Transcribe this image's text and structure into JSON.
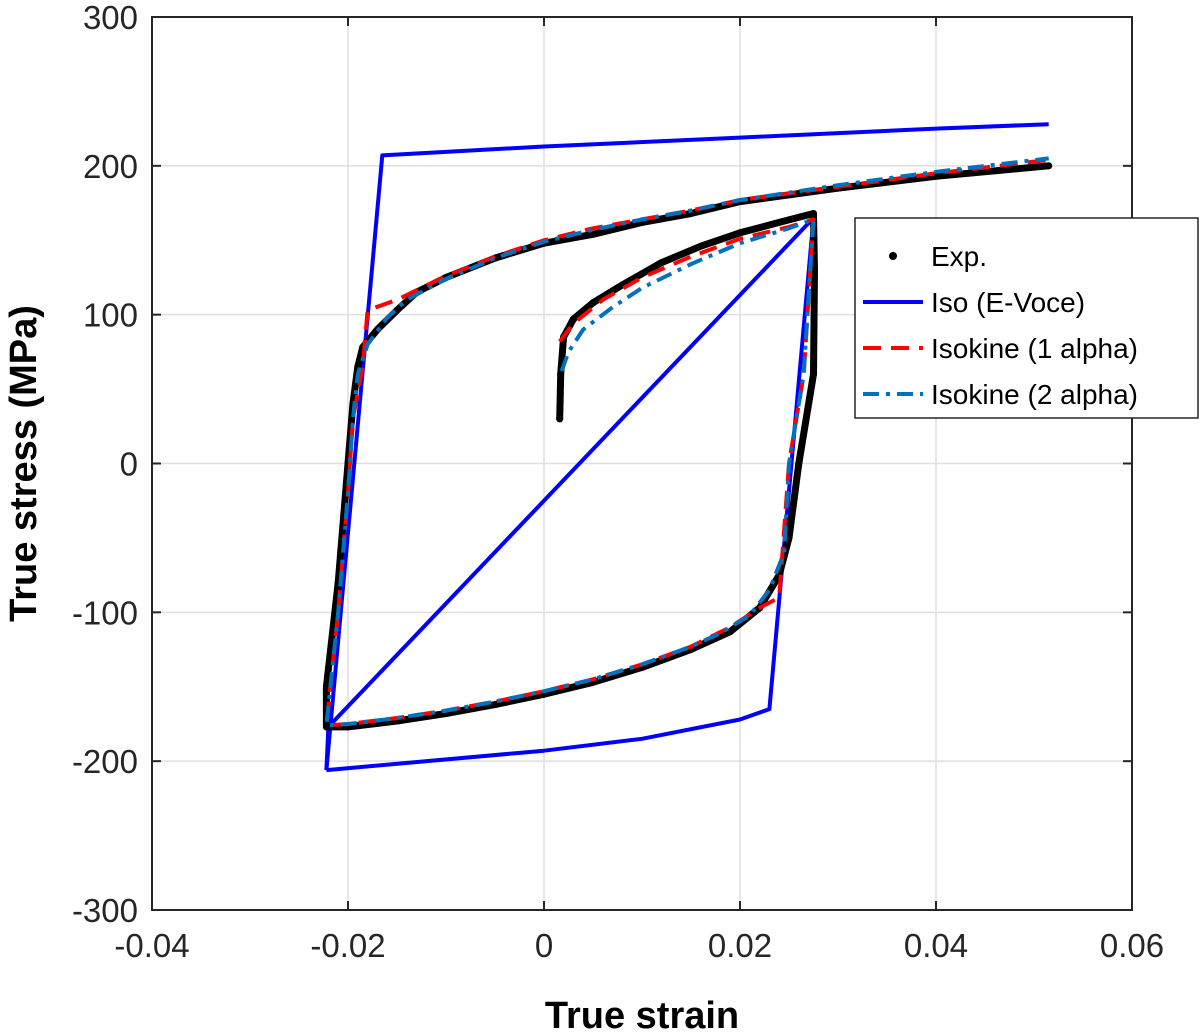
{
  "chart_data": {
    "type": "line",
    "xlabel": "True strain",
    "ylabel": "True stress (MPa)",
    "xlim": [
      -0.04,
      0.06
    ],
    "ylim": [
      -300,
      300
    ],
    "x_ticks": [
      -0.04,
      -0.02,
      0,
      0.02,
      0.04,
      0.06
    ],
    "x_tick_labels": [
      "-0.04",
      "-0.02",
      "0",
      "0.02",
      "0.04",
      "0.06"
    ],
    "y_ticks": [
      -300,
      -200,
      -100,
      0,
      100,
      200,
      300
    ],
    "y_tick_labels": [
      "-300",
      "-200",
      "-100",
      "0",
      "100",
      "200",
      "300"
    ],
    "grid": true,
    "legend_position": "top-right",
    "series": [
      {
        "name": "Exp.",
        "style": "dots",
        "color": "#000000",
        "points": [
          [
            0.0016,
            30
          ],
          [
            0.0017,
            60
          ],
          [
            0.002,
            85
          ],
          [
            0.003,
            97
          ],
          [
            0.005,
            108
          ],
          [
            0.008,
            120
          ],
          [
            0.012,
            135
          ],
          [
            0.016,
            146
          ],
          [
            0.02,
            155
          ],
          [
            0.024,
            162
          ],
          [
            0.0275,
            168
          ],
          [
            0.0276,
            130
          ],
          [
            0.0275,
            60
          ],
          [
            0.026,
            0
          ],
          [
            0.025,
            -50
          ],
          [
            0.024,
            -75
          ],
          [
            0.022,
            -97
          ],
          [
            0.019,
            -113
          ],
          [
            0.015,
            -125
          ],
          [
            0.01,
            -137
          ],
          [
            0.005,
            -147
          ],
          [
            0.0,
            -155
          ],
          [
            -0.005,
            -162
          ],
          [
            -0.01,
            -168
          ],
          [
            -0.015,
            -173
          ],
          [
            -0.02,
            -177
          ],
          [
            -0.0222,
            -177
          ],
          [
            -0.0222,
            -150
          ],
          [
            -0.021,
            -80
          ],
          [
            -0.02,
            0
          ],
          [
            -0.0195,
            40
          ],
          [
            -0.019,
            65
          ],
          [
            -0.0185,
            78
          ],
          [
            -0.017,
            90
          ],
          [
            -0.015,
            103
          ],
          [
            -0.013,
            115
          ],
          [
            -0.01,
            125
          ],
          [
            -0.005,
            138
          ],
          [
            0.0,
            148
          ],
          [
            0.005,
            154
          ],
          [
            0.01,
            162
          ],
          [
            0.015,
            168
          ],
          [
            0.02,
            176
          ],
          [
            0.03,
            185
          ],
          [
            0.04,
            193
          ],
          [
            0.0515,
            200
          ]
        ]
      },
      {
        "name": "Iso (E-Voce)",
        "style": "solid",
        "color": "#0000ff",
        "points": [
          [
            -0.0222,
            -206
          ],
          [
            0.0,
            -193
          ],
          [
            0.01,
            -185
          ],
          [
            0.02,
            -172
          ],
          [
            0.023,
            -165
          ],
          [
            0.0275,
            165
          ],
          [
            0.0275,
            165
          ],
          [
            -0.022,
            -177
          ],
          [
            -0.0222,
            -206
          ]
        ],
        "outer": [
          [
            -0.0222,
            -206
          ],
          [
            -0.0165,
            207
          ],
          [
            0.0,
            213
          ],
          [
            0.02,
            219
          ],
          [
            0.04,
            225
          ],
          [
            0.0515,
            228
          ]
        ]
      },
      {
        "name": "Isokine (1 alpha)",
        "style": "dashed",
        "color": "#ff0000",
        "points": [
          [
            0.0016,
            82
          ],
          [
            0.003,
            94
          ],
          [
            0.006,
            110
          ],
          [
            0.01,
            125
          ],
          [
            0.015,
            139
          ],
          [
            0.02,
            151
          ],
          [
            0.025,
            159
          ],
          [
            0.0275,
            164
          ],
          [
            0.0265,
            60
          ],
          [
            0.025,
            0
          ],
          [
            0.024,
            -90
          ],
          [
            0.022,
            -97
          ],
          [
            0.019,
            -110
          ],
          [
            0.015,
            -123
          ],
          [
            0.01,
            -135
          ],
          [
            0.005,
            -145
          ],
          [
            0.0,
            -153
          ],
          [
            -0.005,
            -160
          ],
          [
            -0.01,
            -166
          ],
          [
            -0.015,
            -171
          ],
          [
            -0.02,
            -175
          ],
          [
            -0.0222,
            -176
          ],
          [
            -0.021,
            -100
          ],
          [
            -0.02,
            -20
          ],
          [
            -0.0195,
            30
          ],
          [
            -0.0185,
            65
          ],
          [
            -0.018,
            103
          ],
          [
            -0.015,
            110
          ],
          [
            -0.01,
            126
          ],
          [
            -0.005,
            139
          ],
          [
            0.0,
            150
          ],
          [
            0.005,
            158
          ],
          [
            0.01,
            164
          ],
          [
            0.015,
            170
          ],
          [
            0.02,
            177
          ],
          [
            0.03,
            186
          ],
          [
            0.04,
            195
          ],
          [
            0.0515,
            204
          ]
        ]
      },
      {
        "name": "Isokine (2 alpha)",
        "style": "dashdot",
        "color": "#0072bd",
        "points": [
          [
            0.0018,
            62
          ],
          [
            0.0025,
            75
          ],
          [
            0.004,
            90
          ],
          [
            0.007,
            105
          ],
          [
            0.01,
            118
          ],
          [
            0.015,
            134
          ],
          [
            0.02,
            148
          ],
          [
            0.025,
            158
          ],
          [
            0.0275,
            164
          ],
          [
            0.0265,
            60
          ],
          [
            0.025,
            0
          ],
          [
            0.0245,
            -60
          ],
          [
            0.023,
            -85
          ],
          [
            0.021,
            -102
          ],
          [
            0.018,
            -114
          ],
          [
            0.015,
            -123
          ],
          [
            0.01,
            -135
          ],
          [
            0.005,
            -145
          ],
          [
            0.0,
            -153
          ],
          [
            -0.005,
            -160
          ],
          [
            -0.01,
            -166
          ],
          [
            -0.015,
            -171
          ],
          [
            -0.02,
            -175
          ],
          [
            -0.0222,
            -176
          ],
          [
            -0.021,
            -100
          ],
          [
            -0.02,
            -20
          ],
          [
            -0.0195,
            30
          ],
          [
            -0.019,
            60
          ],
          [
            -0.018,
            80
          ],
          [
            -0.016,
            98
          ],
          [
            -0.014,
            110
          ],
          [
            -0.01,
            124
          ],
          [
            -0.005,
            138
          ],
          [
            0.0,
            149
          ],
          [
            0.005,
            157
          ],
          [
            0.01,
            164
          ],
          [
            0.015,
            170
          ],
          [
            0.02,
            177
          ],
          [
            0.03,
            187
          ],
          [
            0.04,
            196
          ],
          [
            0.0515,
            205
          ]
        ]
      }
    ]
  },
  "legend": {
    "items": [
      {
        "label": "Exp.",
        "color": "#000000",
        "style": "dots"
      },
      {
        "label": "Iso (E-Voce)",
        "color": "#0000ff",
        "style": "solid"
      },
      {
        "label": "Isokine (1 alpha)",
        "color": "#ff0000",
        "style": "dashed"
      },
      {
        "label": "Isokine (2 alpha)",
        "color": "#0072bd",
        "style": "dashdot"
      }
    ]
  }
}
